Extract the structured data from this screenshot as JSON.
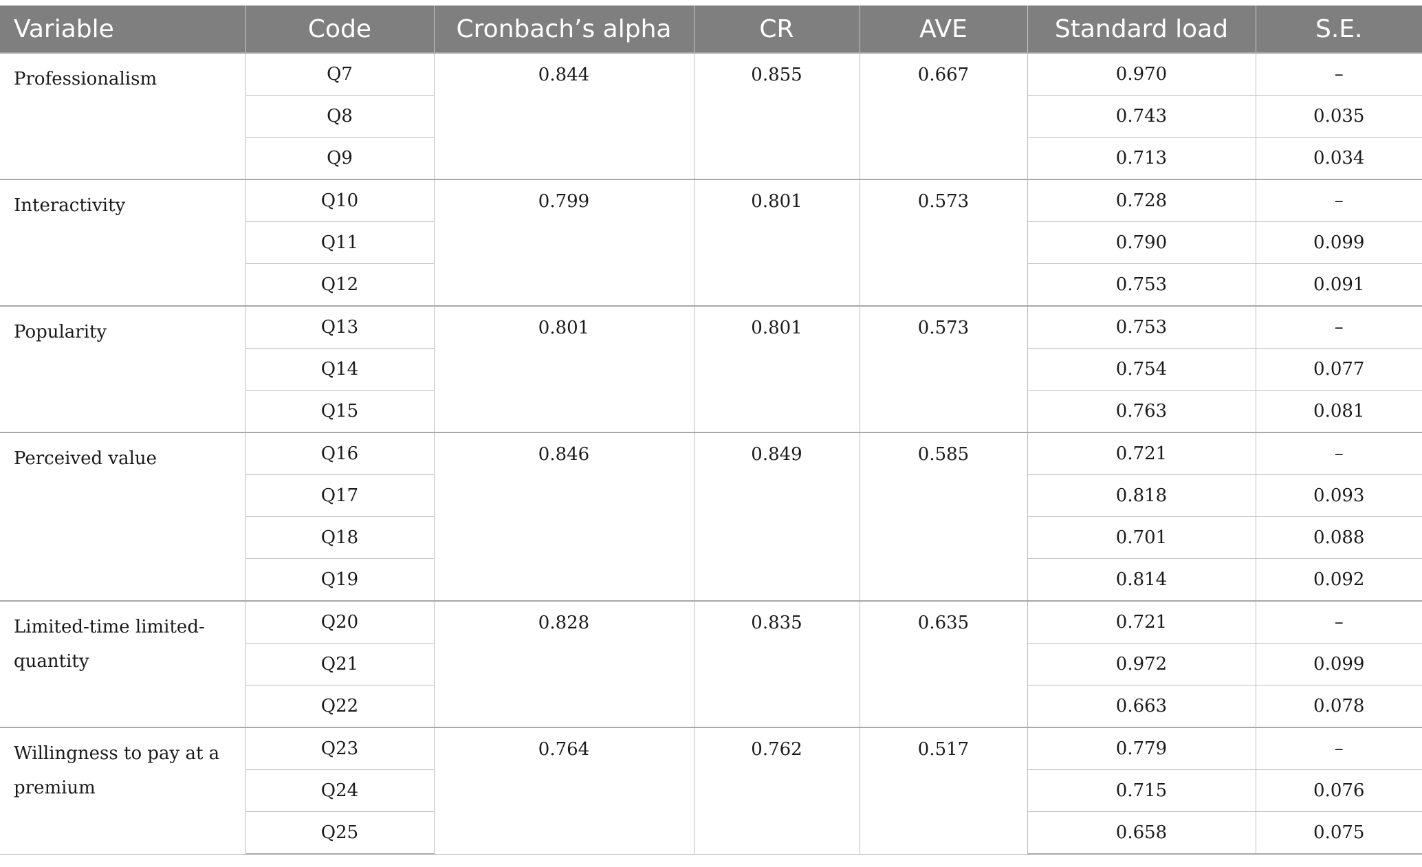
{
  "headers": {
    "variable": "Variable",
    "code": "Code",
    "alpha": "Cronbach’s alpha",
    "cr": "CR",
    "ave": "AVE",
    "load": "Standard load",
    "se": "S.E."
  },
  "groups": [
    {
      "variable": "Professionalism",
      "alpha": "0.844",
      "cr": "0.855",
      "ave": "0.667",
      "rows": [
        {
          "code": "Q7",
          "load": "0.970",
          "se": "–"
        },
        {
          "code": "Q8",
          "load": "0.743",
          "se": "0.035"
        },
        {
          "code": "Q9",
          "load": "0.713",
          "se": "0.034"
        }
      ]
    },
    {
      "variable": "Interactivity",
      "alpha": "0.799",
      "cr": "0.801",
      "ave": "0.573",
      "rows": [
        {
          "code": "Q10",
          "load": "0.728",
          "se": "–"
        },
        {
          "code": "Q11",
          "load": "0.790",
          "se": "0.099"
        },
        {
          "code": "Q12",
          "load": "0.753",
          "se": "0.091"
        }
      ]
    },
    {
      "variable": "Popularity",
      "alpha": "0.801",
      "cr": "0.801",
      "ave": "0.573",
      "rows": [
        {
          "code": "Q13",
          "load": "0.753",
          "se": "–"
        },
        {
          "code": "Q14",
          "load": "0.754",
          "se": "0.077"
        },
        {
          "code": "Q15",
          "load": "0.763",
          "se": "0.081"
        }
      ]
    },
    {
      "variable": "Perceived value",
      "alpha": "0.846",
      "cr": "0.849",
      "ave": "0.585",
      "rows": [
        {
          "code": "Q16",
          "load": "0.721",
          "se": "–"
        },
        {
          "code": "Q17",
          "load": "0.818",
          "se": "0.093"
        },
        {
          "code": "Q18",
          "load": "0.701",
          "se": "0.088"
        },
        {
          "code": "Q19",
          "load": "0.814",
          "se": "0.092"
        }
      ]
    },
    {
      "variable": "Limited-time limited-quantity",
      "alpha": "0.828",
      "cr": "0.835",
      "ave": "0.635",
      "rows": [
        {
          "code": "Q20",
          "load": "0.721",
          "se": "–"
        },
        {
          "code": "Q21",
          "load": "0.972",
          "se": "0.099"
        },
        {
          "code": "Q22",
          "load": "0.663",
          "se": "0.078"
        }
      ]
    },
    {
      "variable": "Willingness to pay at a premium",
      "alpha": "0.764",
      "cr": "0.762",
      "ave": "0.517",
      "rows": [
        {
          "code": "Q23",
          "load": "0.779",
          "se": "–"
        },
        {
          "code": "Q24",
          "load": "0.715",
          "se": "0.076"
        },
        {
          "code": "Q25",
          "load": "0.658",
          "se": "0.075"
        }
      ]
    }
  ]
}
